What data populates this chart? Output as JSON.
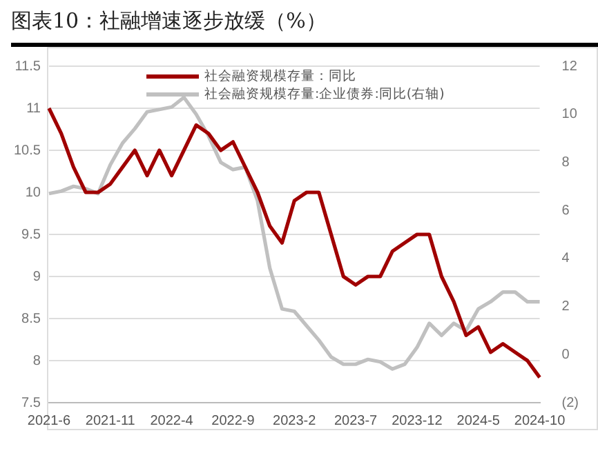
{
  "chart_data": {
    "type": "line",
    "title": "图表10：社融增速逐步放缓（%）",
    "categories": [
      "2021-6",
      null,
      null,
      null,
      null,
      "2021-11",
      null,
      null,
      null,
      null,
      "2022-4",
      null,
      null,
      null,
      null,
      "2022-9",
      null,
      null,
      null,
      null,
      "2023-2",
      null,
      null,
      null,
      null,
      "2023-7",
      null,
      null,
      null,
      null,
      "2023-12",
      null,
      null,
      null,
      null,
      "2024-5",
      null,
      null,
      null,
      null,
      "2024-10"
    ],
    "series": [
      {
        "name": "社会融资规模存量：同比",
        "color": "#a00000",
        "values": [
          11.0,
          10.7,
          10.3,
          10.0,
          10.0,
          10.1,
          10.3,
          10.5,
          10.2,
          10.5,
          10.2,
          10.5,
          10.8,
          10.7,
          10.5,
          10.6,
          10.3,
          10.0,
          9.6,
          9.4,
          9.9,
          10.0,
          10.0,
          9.5,
          9.0,
          8.9,
          9.0,
          9.0,
          9.3,
          9.4,
          9.5,
          9.5,
          9.0,
          8.7,
          8.3,
          8.4,
          8.1,
          8.2,
          8.1,
          8.0,
          7.8
        ]
      },
      {
        "name": "社会融资规模存量:企业债券:同比(右轴)",
        "color": "#c0c0c0",
        "axis": "y2",
        "values": [
          6.7,
          6.8,
          7.0,
          6.9,
          6.7,
          7.9,
          8.8,
          9.4,
          10.1,
          10.2,
          10.3,
          10.7,
          10.0,
          9.1,
          8.0,
          7.7,
          7.8,
          6.4,
          3.6,
          1.9,
          1.8,
          1.2,
          0.6,
          -0.1,
          -0.4,
          -0.4,
          -0.2,
          -0.3,
          -0.6,
          -0.4,
          0.3,
          1.3,
          0.8,
          1.3,
          1.0,
          1.9,
          2.2,
          2.6,
          2.6,
          2.2,
          2.2
        ]
      }
    ],
    "ylim": [
      7.5,
      11.5
    ],
    "yticks": [
      7.5,
      8,
      8.5,
      9,
      9.5,
      10,
      10.5,
      11,
      11.5
    ],
    "y2lim": [
      -2,
      12
    ],
    "y2ticks": [
      {
        "value": -2,
        "label": "(2)"
      },
      0,
      2,
      4,
      6,
      8,
      10,
      12
    ],
    "grid": "y",
    "legend": "top",
    "marker": "none",
    "line_style": "solid"
  }
}
